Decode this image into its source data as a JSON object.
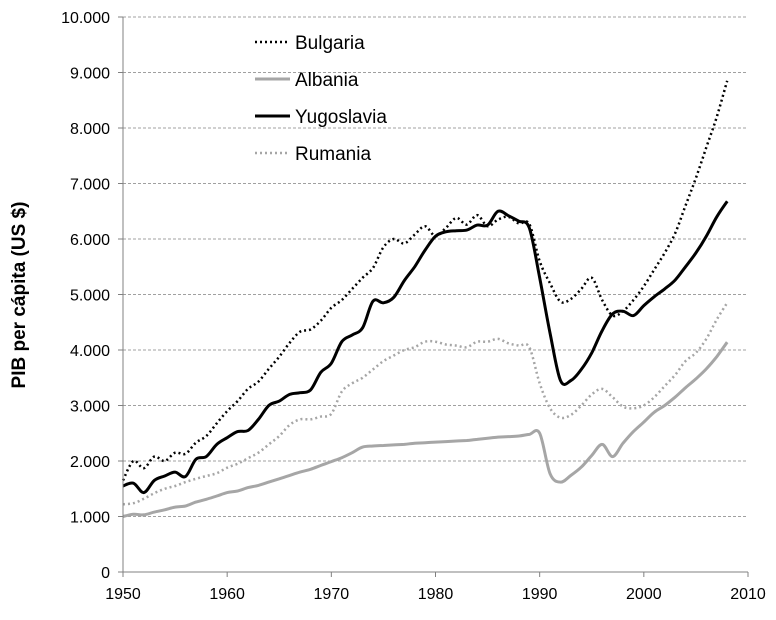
{
  "chart_data": {
    "type": "line",
    "title": "",
    "xlabel": "",
    "ylabel": "PIB per cápita (US $)",
    "xlim": [
      1950,
      2010
    ],
    "ylim": [
      0,
      10000
    ],
    "x_ticks": [
      1950,
      1960,
      1970,
      1980,
      1990,
      2000,
      2010
    ],
    "x_tick_labels": [
      "1950",
      "1960",
      "1970",
      "1980",
      "1990",
      "2000",
      "2010"
    ],
    "y_ticks": [
      0,
      1000,
      2000,
      3000,
      4000,
      5000,
      6000,
      7000,
      8000,
      9000,
      10000
    ],
    "y_tick_labels": [
      "0",
      "1.000",
      "2.000",
      "3.000",
      "4.000",
      "5.000",
      "6.000",
      "7.000",
      "8.000",
      "9.000",
      "10.000"
    ],
    "grid": "horizontal dashed",
    "legend_position": "top-left",
    "series": [
      {
        "name": "Bulgaria",
        "color": "#000000",
        "dash": "dotted",
        "x": [
          1950,
          1951,
          1952,
          1953,
          1954,
          1955,
          1956,
          1957,
          1958,
          1959,
          1960,
          1961,
          1962,
          1963,
          1964,
          1965,
          1966,
          1967,
          1968,
          1969,
          1970,
          1971,
          1972,
          1973,
          1974,
          1975,
          1976,
          1977,
          1978,
          1979,
          1980,
          1981,
          1982,
          1983,
          1984,
          1985,
          1986,
          1987,
          1988,
          1989,
          1990,
          1991,
          1992,
          1993,
          1994,
          1995,
          1996,
          1997,
          1998,
          1999,
          2000,
          2001,
          2002,
          2003,
          2004,
          2005,
          2006,
          2007,
          2008
        ],
        "values": [
          1650,
          2000,
          1870,
          2080,
          2000,
          2150,
          2130,
          2330,
          2450,
          2680,
          2900,
          3080,
          3300,
          3430,
          3660,
          3880,
          4130,
          4330,
          4370,
          4530,
          4760,
          4900,
          5100,
          5300,
          5480,
          5850,
          6000,
          5920,
          6080,
          6230,
          6050,
          6200,
          6380,
          6260,
          6430,
          6230,
          6350,
          6400,
          6280,
          6270,
          5600,
          5200,
          4870,
          4920,
          5100,
          5300,
          4900,
          4620,
          4700,
          4900,
          5150,
          5450,
          5750,
          6100,
          6600,
          7100,
          7650,
          8200,
          8850
        ]
      },
      {
        "name": "Albania",
        "color": "#a6a6a6",
        "dash": "solid",
        "x": [
          1950,
          1951,
          1952,
          1953,
          1954,
          1955,
          1956,
          1957,
          1958,
          1959,
          1960,
          1961,
          1962,
          1963,
          1964,
          1965,
          1966,
          1967,
          1968,
          1969,
          1970,
          1971,
          1972,
          1973,
          1974,
          1975,
          1976,
          1977,
          1978,
          1979,
          1980,
          1981,
          1982,
          1983,
          1984,
          1985,
          1986,
          1987,
          1988,
          1989,
          1990,
          1991,
          1992,
          1993,
          1994,
          1995,
          1996,
          1997,
          1998,
          1999,
          2000,
          2001,
          2002,
          2003,
          2004,
          2005,
          2006,
          2007,
          2008
        ],
        "values": [
          1000,
          1040,
          1030,
          1080,
          1120,
          1170,
          1190,
          1260,
          1310,
          1370,
          1430,
          1460,
          1520,
          1560,
          1620,
          1680,
          1740,
          1800,
          1850,
          1920,
          1990,
          2060,
          2150,
          2250,
          2270,
          2280,
          2290,
          2300,
          2320,
          2330,
          2340,
          2350,
          2360,
          2370,
          2390,
          2410,
          2430,
          2440,
          2450,
          2480,
          2500,
          1770,
          1620,
          1740,
          1890,
          2100,
          2300,
          2080,
          2320,
          2530,
          2700,
          2880,
          3000,
          3150,
          3320,
          3480,
          3660,
          3880,
          4140
        ]
      },
      {
        "name": "Yugoslavia",
        "color": "#000000",
        "dash": "solid",
        "x": [
          1950,
          1951,
          1952,
          1953,
          1954,
          1955,
          1956,
          1957,
          1958,
          1959,
          1960,
          1961,
          1962,
          1963,
          1964,
          1965,
          1966,
          1967,
          1968,
          1969,
          1970,
          1971,
          1972,
          1973,
          1974,
          1975,
          1976,
          1977,
          1978,
          1979,
          1980,
          1981,
          1982,
          1983,
          1984,
          1985,
          1986,
          1987,
          1988,
          1989,
          1990,
          1991,
          1992,
          1993,
          1994,
          1995,
          1996,
          1997,
          1998,
          1999,
          2000,
          2001,
          2002,
          2003,
          2004,
          2005,
          2006,
          2007,
          2008
        ],
        "values": [
          1550,
          1600,
          1430,
          1650,
          1730,
          1800,
          1720,
          2030,
          2080,
          2300,
          2420,
          2530,
          2550,
          2750,
          3000,
          3080,
          3200,
          3230,
          3280,
          3600,
          3760,
          4150,
          4270,
          4400,
          4880,
          4850,
          4950,
          5250,
          5500,
          5800,
          6050,
          6130,
          6150,
          6160,
          6250,
          6250,
          6500,
          6420,
          6320,
          6200,
          5300,
          4300,
          3450,
          3450,
          3650,
          3950,
          4350,
          4650,
          4700,
          4620,
          4800,
          4960,
          5100,
          5260,
          5500,
          5750,
          6050,
          6400,
          6680
        ]
      },
      {
        "name": "Rumania",
        "color": "#a6a6a6",
        "dash": "dotted",
        "x": [
          1950,
          1951,
          1952,
          1953,
          1954,
          1955,
          1956,
          1957,
          1958,
          1959,
          1960,
          1961,
          1962,
          1963,
          1964,
          1965,
          1966,
          1967,
          1968,
          1969,
          1970,
          1971,
          1972,
          1973,
          1974,
          1975,
          1976,
          1977,
          1978,
          1979,
          1980,
          1981,
          1982,
          1983,
          1984,
          1985,
          1986,
          1987,
          1988,
          1989,
          1990,
          1991,
          1992,
          1993,
          1994,
          1995,
          1996,
          1997,
          1998,
          1999,
          2000,
          2001,
          2002,
          2003,
          2004,
          2005,
          2006,
          2007,
          2008
        ],
        "values": [
          1220,
          1240,
          1320,
          1420,
          1500,
          1550,
          1620,
          1680,
          1730,
          1780,
          1880,
          1950,
          2050,
          2150,
          2300,
          2450,
          2650,
          2750,
          2750,
          2800,
          2850,
          3250,
          3400,
          3500,
          3650,
          3800,
          3900,
          4000,
          4050,
          4150,
          4150,
          4100,
          4080,
          4050,
          4150,
          4150,
          4200,
          4120,
          4080,
          4050,
          3400,
          2950,
          2780,
          2830,
          3000,
          3200,
          3300,
          3150,
          2980,
          2950,
          3000,
          3150,
          3350,
          3550,
          3800,
          3950,
          4200,
          4550,
          4850
        ]
      }
    ]
  }
}
